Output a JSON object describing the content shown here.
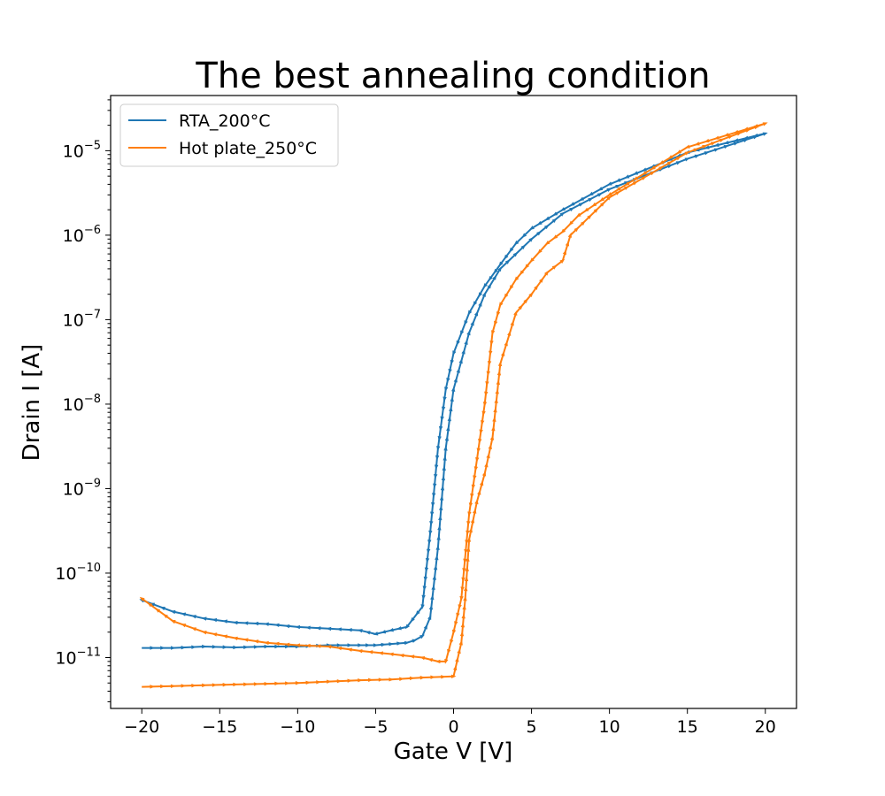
{
  "chart_data": {
    "type": "line",
    "title": "The best annealing condition",
    "xlabel": "Gate V [V]",
    "ylabel": "Drain I [A]",
    "xlim": [
      -22,
      22
    ],
    "ylim": [
      2.5e-12,
      4.5e-05
    ],
    "yscale": "log",
    "x_ticks": [
      -20,
      -15,
      -10,
      -5,
      0,
      5,
      10,
      15,
      20
    ],
    "x_tick_labels": [
      "−20",
      "−15",
      "−10",
      "−5",
      "0",
      "5",
      "10",
      "15",
      "20"
    ],
    "y_ticks": [
      1e-11,
      1e-10,
      1e-09,
      1e-08,
      1e-07,
      1e-06,
      1e-05
    ],
    "y_tick_labels": [
      {
        "base": "10",
        "exp": "−11"
      },
      {
        "base": "10",
        "exp": "−10"
      },
      {
        "base": "10",
        "exp": "−9"
      },
      {
        "base": "10",
        "exp": "−8"
      },
      {
        "base": "10",
        "exp": "−7"
      },
      {
        "base": "10",
        "exp": "−6"
      },
      {
        "base": "10",
        "exp": "−5"
      }
    ],
    "legend_position": "upper-left",
    "series": [
      {
        "name": "RTA_200°C",
        "color": "#1f77b4",
        "x": [
          -20,
          -18,
          -16,
          -14,
          -12,
          -10,
          -8,
          -6,
          -5,
          -4,
          -3,
          -2.5,
          -2,
          -1.5,
          -1,
          -0.5,
          0,
          1,
          2,
          3,
          4,
          5,
          7,
          10,
          15,
          20,
          15,
          10,
          7,
          5,
          4,
          3,
          2,
          1,
          0,
          -0.5,
          -1,
          -1.5,
          -2,
          -3,
          -4,
          -5,
          -6,
          -8,
          -10,
          -12,
          -14,
          -16,
          -18,
          -20
        ],
        "y": [
          1.3e-11,
          1.3e-11,
          1.35e-11,
          1.32e-11,
          1.35e-11,
          1.35e-11,
          1.4e-11,
          1.4e-11,
          1.4e-11,
          1.45e-11,
          1.5e-11,
          1.6e-11,
          1.8e-11,
          3e-11,
          2e-10,
          3e-09,
          1.5e-08,
          7e-08,
          2e-07,
          4e-07,
          6e-07,
          9e-07,
          1.8e-06,
          3.5e-06,
          8e-06,
          1.6e-05,
          9.5e-06,
          4e-06,
          2e-06,
          1.2e-06,
          8e-07,
          4.5e-07,
          2.5e-07,
          1.2e-07,
          4e-08,
          1.5e-08,
          3e-09,
          3e-10,
          4e-11,
          2.3e-11,
          2.1e-11,
          1.9e-11,
          2.1e-11,
          2.2e-11,
          2.3e-11,
          2.5e-11,
          2.6e-11,
          2.9e-11,
          3.5e-11,
          4.8e-11
        ]
      },
      {
        "name": "Hot plate_250°C",
        "color": "#ff7f0e",
        "x": [
          -20,
          -18,
          -16,
          -14,
          -12,
          -10,
          -8,
          -6,
          -4,
          -2,
          0,
          0.5,
          0.75,
          1,
          1.5,
          2,
          2.5,
          3,
          4,
          5,
          6,
          7,
          7.5,
          10,
          15,
          20,
          15,
          10,
          8,
          7,
          6,
          5,
          4,
          3,
          2.5,
          2,
          1.5,
          1,
          0.5,
          0,
          -0.5,
          -1,
          -2,
          -4,
          -6,
          -8,
          -10,
          -12,
          -14,
          -16,
          -18,
          -20
        ],
        "y": [
          4.5e-12,
          4.6e-12,
          4.7e-12,
          4.8e-12,
          4.9e-12,
          5e-12,
          5.2e-12,
          5.4e-12,
          5.5e-12,
          5.8e-12,
          6e-12,
          1.5e-11,
          5e-11,
          2.5e-10,
          7e-10,
          1.5e-09,
          4e-09,
          3e-08,
          1.2e-07,
          2e-07,
          3.6e-07,
          5e-07,
          1e-06,
          2.8e-06,
          9.5e-06,
          2.1e-05,
          1.1e-05,
          3e-06,
          1.7e-06,
          1.1e-06,
          8e-07,
          5e-07,
          3e-07,
          1.5e-07,
          7e-08,
          1e-08,
          2.2e-09,
          5e-10,
          5e-11,
          2e-11,
          9e-12,
          9e-12,
          1e-11,
          1.1e-11,
          1.2e-11,
          1.35e-11,
          1.4e-11,
          1.5e-11,
          1.7e-11,
          2e-11,
          2.7e-11,
          5e-11
        ]
      }
    ]
  }
}
